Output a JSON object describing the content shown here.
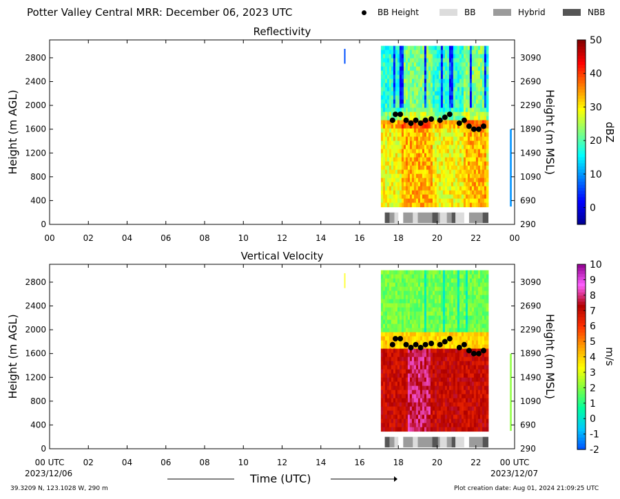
{
  "header": {
    "title": "Potter Valley Central MRR:  December 06, 2023 UTC",
    "legend": [
      {
        "label": "BB Height",
        "marker": "dot",
        "color": "#000000"
      },
      {
        "label": "BB",
        "marker": "box",
        "color": "#dcdcdc"
      },
      {
        "label": "Hybrid",
        "marker": "box",
        "color": "#9b9b9b"
      },
      {
        "label": "NBB",
        "marker": "box",
        "color": "#555555"
      }
    ]
  },
  "footer": {
    "location": "39.3209 N, 123.1028 W, 290 m",
    "creation": "Plot creation date: Aug 01, 2024 21:09:25 UTC",
    "start_date": "2023/12/06",
    "end_date": "2023/12/07",
    "xlabel": "Time (UTC)"
  },
  "chart_data": [
    {
      "type": "heatmap",
      "title": "Reflectivity",
      "ylabel": "Height (m AGL)",
      "ylabel_right": "Height (m MSL)",
      "ylim": [
        0,
        3100
      ],
      "xlim": [
        0,
        24
      ],
      "x_ticks": [
        "00",
        "02",
        "04",
        "06",
        "08",
        "10",
        "12",
        "14",
        "16",
        "18",
        "20",
        "22",
        "00"
      ],
      "y_ticks": [
        0,
        400,
        800,
        1200,
        1600,
        2000,
        2400,
        2800
      ],
      "y_ticks_right": [
        "290",
        "690",
        "1090",
        "1490",
        "1890",
        "2290",
        "2690",
        "3090"
      ],
      "colorbar": {
        "label": "dBZ",
        "range": [
          -5,
          50
        ],
        "ticks": [
          "0",
          "10",
          "20",
          "30",
          "40",
          "50"
        ]
      },
      "colors": [
        "#00008f",
        "#0000ff",
        "#0080ff",
        "#00ffff",
        "#80ff80",
        "#ffff00",
        "#ff8000",
        "#ff0000",
        "#800000"
      ],
      "data_extent_hours": [
        17.1,
        22.6
      ],
      "bb_height": {
        "x": [
          17.7,
          17.85,
          18.1,
          18.4,
          18.65,
          18.9,
          19.15,
          19.4,
          19.7,
          20.15,
          20.4,
          20.65,
          21.15,
          21.4,
          21.65,
          21.9,
          22.15,
          22.4
        ],
        "y": [
          1750,
          1850,
          1850,
          1750,
          1700,
          1750,
          1700,
          1750,
          1770,
          1750,
          1800,
          1850,
          1700,
          1750,
          1650,
          1600,
          1600,
          1650
        ]
      },
      "bb_type_strip": {
        "segments": [
          {
            "start": 17.3,
            "end": 17.55,
            "type": "NBB"
          },
          {
            "start": 17.55,
            "end": 17.8,
            "type": "Hybrid"
          },
          {
            "start": 17.8,
            "end": 18.0,
            "type": "BB"
          },
          {
            "start": 18.25,
            "end": 18.75,
            "type": "Hybrid"
          },
          {
            "start": 18.75,
            "end": 19.0,
            "type": "BB"
          },
          {
            "start": 19.0,
            "end": 19.75,
            "type": "Hybrid"
          },
          {
            "start": 19.75,
            "end": 20.05,
            "type": "NBB"
          },
          {
            "start": 20.05,
            "end": 20.15,
            "type": "Hybrid"
          },
          {
            "start": 20.15,
            "end": 20.5,
            "type": "BB"
          },
          {
            "start": 20.5,
            "end": 20.75,
            "type": "Hybrid"
          },
          {
            "start": 20.75,
            "end": 20.95,
            "type": "NBB"
          },
          {
            "start": 20.95,
            "end": 21.4,
            "type": "BB"
          },
          {
            "start": 21.65,
            "end": 22.35,
            "type": "Hybrid"
          },
          {
            "start": 22.35,
            "end": 22.65,
            "type": "NBB"
          }
        ]
      }
    },
    {
      "type": "heatmap",
      "title": "Vertical Velocity",
      "ylabel": "Height (m AGL)",
      "ylabel_right": "Height (m MSL)",
      "ylim": [
        0,
        3100
      ],
      "xlim": [
        0,
        24
      ],
      "x_ticks": [
        "00 UTC",
        "02",
        "04",
        "06",
        "08",
        "10",
        "12",
        "14",
        "16",
        "18",
        "20",
        "22",
        "00 UTC"
      ],
      "y_ticks": [
        0,
        400,
        800,
        1200,
        1600,
        2000,
        2400,
        2800
      ],
      "y_ticks_right": [
        "290",
        "690",
        "1090",
        "1490",
        "1890",
        "2290",
        "2690",
        "3090"
      ],
      "colorbar": {
        "label": "m/s",
        "range": [
          -2,
          10
        ],
        "ticks": [
          "-2",
          "-1",
          "0",
          "1",
          "2",
          "3",
          "4",
          "5",
          "6",
          "7",
          "8",
          "9",
          "10"
        ]
      },
      "colors": [
        "#0050ff",
        "#00c8ff",
        "#00ffa0",
        "#80ff40",
        "#ffff00",
        "#ffa000",
        "#ff3000",
        "#b00000",
        "#ff60ff",
        "#900090"
      ],
      "data_extent_hours": [
        17.1,
        22.6
      ],
      "bb_height": {
        "x": [
          17.7,
          17.85,
          18.1,
          18.4,
          18.65,
          18.9,
          19.15,
          19.4,
          19.7,
          20.15,
          20.4,
          20.65,
          21.15,
          21.4,
          21.65,
          21.9,
          22.15,
          22.4
        ],
        "y": [
          1750,
          1850,
          1850,
          1750,
          1700,
          1750,
          1700,
          1750,
          1770,
          1750,
          1800,
          1850,
          1700,
          1750,
          1650,
          1600,
          1600,
          1650
        ]
      }
    }
  ]
}
